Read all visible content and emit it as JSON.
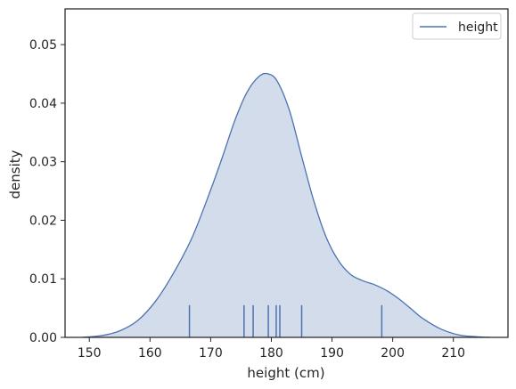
{
  "chart_data": {
    "type": "area",
    "xlabel": "height (cm)",
    "ylabel": "density",
    "xlim": [
      146,
      219
    ],
    "ylim": [
      0,
      0.0561
    ],
    "xticks": [
      150,
      160,
      170,
      180,
      190,
      200,
      210
    ],
    "yticks": [
      0.0,
      0.01,
      0.02,
      0.03,
      0.04,
      0.05
    ],
    "ytick_labels": [
      "0.00",
      "0.01",
      "0.02",
      "0.03",
      "0.04",
      "0.05"
    ],
    "grid": false,
    "legend_position": "top-right",
    "series": [
      {
        "name": "height",
        "color": "#4c72b0",
        "fill_color": "#4c72b0",
        "fill_alpha": 0.25,
        "x": [
          148.9,
          152,
          155,
          158,
          161,
          164,
          167,
          170,
          172,
          174,
          176,
          178,
          179.5,
          181,
          183,
          185,
          187,
          189,
          191,
          193,
          195,
          197,
          199,
          201,
          203,
          205,
          208,
          211,
          214,
          216
        ],
        "y": [
          0.0,
          0.0003,
          0.0011,
          0.0029,
          0.0063,
          0.0112,
          0.0172,
          0.0252,
          0.031,
          0.0371,
          0.0419,
          0.0446,
          0.045,
          0.0437,
          0.0387,
          0.0309,
          0.0233,
          0.0172,
          0.0132,
          0.0108,
          0.0097,
          0.009,
          0.008,
          0.0066,
          0.0049,
          0.0032,
          0.0014,
          0.0004,
          0.0001,
          0.0
        ]
      }
    ],
    "rug": {
      "values": [
        166.5,
        175.5,
        177.0,
        179.5,
        180.8,
        181.4,
        185.0,
        198.2
      ],
      "height": 0.0055
    }
  }
}
